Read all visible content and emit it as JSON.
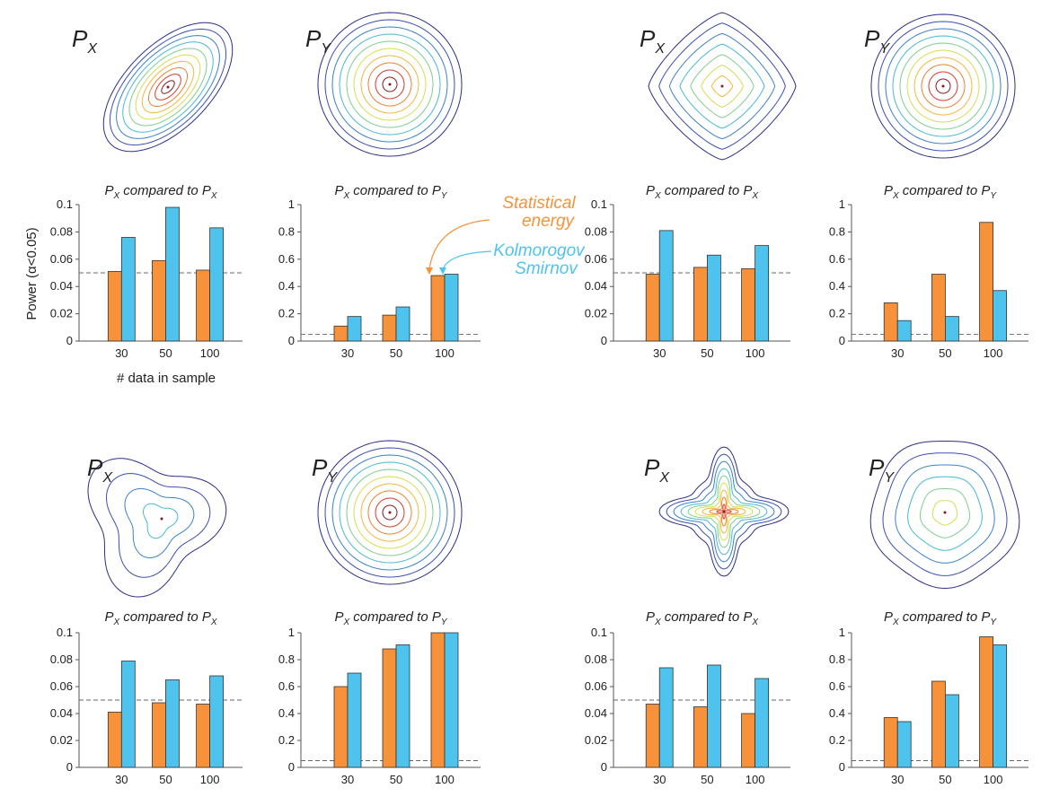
{
  "legend": {
    "energy": {
      "line1": "Statistical",
      "line2": "energy",
      "color": "#F7923A"
    },
    "ks": {
      "line1": "Kolmorogov",
      "line2": "Smirnov",
      "color": "#4DC3EE"
    }
  },
  "ylabel": "Power (α<0.05)",
  "xlabel": "# data in sample",
  "density_labels": {
    "x_main": "P",
    "x_sub": "X",
    "y_main": "P",
    "y_sub": "Y"
  },
  "chart_data": [
    {
      "type": "bar",
      "title_main": "P",
      "title_sub": "X",
      "title_mid": " compared to ",
      "title_main2": "P",
      "title_sub2": "X",
      "categories": [
        "30",
        "50",
        "100"
      ],
      "ylim": [
        0,
        0.1
      ],
      "yticks": [
        "0",
        "0.02",
        "0.04",
        "0.06",
        "0.08",
        "0.1"
      ],
      "threshold": 0.05,
      "series": [
        {
          "values": [
            0.051,
            0.059,
            0.052
          ]
        },
        {
          "values": [
            0.076,
            0.098,
            0.083
          ]
        }
      ]
    },
    {
      "type": "bar",
      "title_main": "P",
      "title_sub": "X",
      "title_mid": " compared to ",
      "title_main2": "P",
      "title_sub2": "Y",
      "categories": [
        "30",
        "50",
        "100"
      ],
      "ylim": [
        0,
        1
      ],
      "yticks": [
        "0",
        "0.2",
        "0.4",
        "0.6",
        "0.8",
        "1"
      ],
      "threshold": 0.05,
      "series": [
        {
          "values": [
            0.11,
            0.19,
            0.48
          ]
        },
        {
          "values": [
            0.18,
            0.25,
            0.49
          ]
        }
      ]
    },
    {
      "type": "bar",
      "title_main": "P",
      "title_sub": "X",
      "title_mid": " compared to ",
      "title_main2": "P",
      "title_sub2": "X",
      "categories": [
        "30",
        "50",
        "100"
      ],
      "ylim": [
        0,
        0.1
      ],
      "yticks": [
        "0",
        "0.02",
        "0.04",
        "0.06",
        "0.08",
        "0.1"
      ],
      "threshold": 0.05,
      "series": [
        {
          "values": [
            0.049,
            0.054,
            0.053
          ]
        },
        {
          "values": [
            0.081,
            0.063,
            0.07
          ]
        }
      ]
    },
    {
      "type": "bar",
      "title_main": "P",
      "title_sub": "X",
      "title_mid": " compared to ",
      "title_main2": "P",
      "title_sub2": "Y",
      "categories": [
        "30",
        "50",
        "100"
      ],
      "ylim": [
        0,
        1
      ],
      "yticks": [
        "0",
        "0.2",
        "0.4",
        "0.6",
        "0.8",
        "1"
      ],
      "threshold": 0.05,
      "series": [
        {
          "values": [
            0.28,
            0.49,
            0.87
          ]
        },
        {
          "values": [
            0.15,
            0.18,
            0.37
          ]
        }
      ]
    },
    {
      "type": "bar",
      "title_main": "P",
      "title_sub": "X",
      "title_mid": " compared to ",
      "title_main2": "P",
      "title_sub2": "X",
      "categories": [
        "30",
        "50",
        "100"
      ],
      "ylim": [
        0,
        0.1
      ],
      "yticks": [
        "0",
        "0.02",
        "0.04",
        "0.06",
        "0.08",
        "0.1"
      ],
      "threshold": 0.05,
      "series": [
        {
          "values": [
            0.041,
            0.048,
            0.047
          ]
        },
        {
          "values": [
            0.079,
            0.065,
            0.068
          ]
        }
      ]
    },
    {
      "type": "bar",
      "title_main": "P",
      "title_sub": "X",
      "title_mid": " compared to ",
      "title_main2": "P",
      "title_sub2": "Y",
      "categories": [
        "30",
        "50",
        "100"
      ],
      "ylim": [
        0,
        1
      ],
      "yticks": [
        "0",
        "0.2",
        "0.4",
        "0.6",
        "0.8",
        "1"
      ],
      "threshold": 0.05,
      "series": [
        {
          "values": [
            0.6,
            0.88,
            1.0
          ]
        },
        {
          "values": [
            0.7,
            0.91,
            1.0
          ]
        }
      ]
    },
    {
      "type": "bar",
      "title_main": "P",
      "title_sub": "X",
      "title_mid": " compared to ",
      "title_main2": "P",
      "title_sub2": "X",
      "categories": [
        "30",
        "50",
        "100"
      ],
      "ylim": [
        0,
        0.1
      ],
      "yticks": [
        "0",
        "0.02",
        "0.04",
        "0.06",
        "0.08",
        "0.1"
      ],
      "threshold": 0.05,
      "series": [
        {
          "values": [
            0.047,
            0.045,
            0.04
          ]
        },
        {
          "values": [
            0.074,
            0.076,
            0.066
          ]
        }
      ]
    },
    {
      "type": "bar",
      "title_main": "P",
      "title_sub": "X",
      "title_mid": " compared to ",
      "title_main2": "P",
      "title_sub2": "Y",
      "categories": [
        "30",
        "50",
        "100"
      ],
      "ylim": [
        0,
        1
      ],
      "yticks": [
        "0",
        "0.2",
        "0.4",
        "0.6",
        "0.8",
        "1"
      ],
      "threshold": 0.05,
      "series": [
        {
          "values": [
            0.37,
            0.64,
            0.97
          ]
        },
        {
          "values": [
            0.34,
            0.54,
            0.91
          ]
        }
      ]
    }
  ],
  "contour_colors": [
    "#2b2f86",
    "#3a4fb0",
    "#3b82c7",
    "#47b9d8",
    "#7fcf8f",
    "#d6dd4f",
    "#f5b73b",
    "#ef7f2c",
    "#d83a2a",
    "#8a1a1a"
  ]
}
